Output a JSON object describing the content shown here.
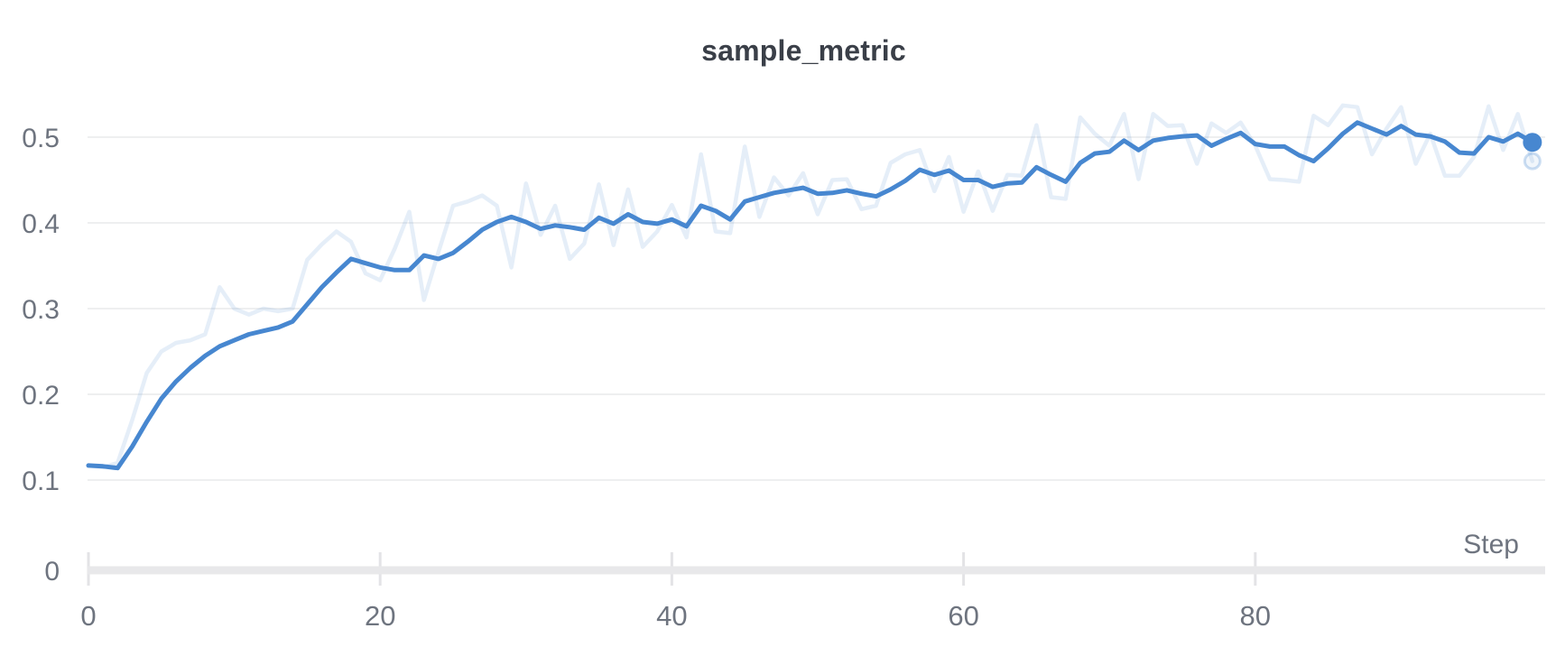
{
  "chart": {
    "title": "sample_metric",
    "x_axis_label": "Step"
  },
  "colors": {
    "line": "#4787d0",
    "raw_line_opacity": 0.14,
    "grid": "#e9eaec",
    "axis_bar": "#e8e8ea",
    "tick_mark": "#e3e3e6",
    "tick_text": "#6e747f",
    "title_text": "#3a3f48",
    "background": "#ffffff"
  },
  "chart_data": {
    "type": "line",
    "title": "sample_metric",
    "xlabel": "Step",
    "ylabel": "",
    "x_start": 0,
    "x_step": 1,
    "xlim": [
      0,
      99
    ],
    "ylim": [
      0,
      0.55
    ],
    "x_tick_values": [
      0,
      20,
      40,
      60,
      80
    ],
    "x_tick_labels": [
      "0",
      "20",
      "40",
      "60",
      "80"
    ],
    "y_tick_values": [
      0,
      0.1,
      0.2,
      0.3,
      0.4,
      0.5
    ],
    "y_tick_labels": [
      "0",
      "0.1",
      "0.2",
      "0.3",
      "0.4",
      "0.5"
    ],
    "grid": true,
    "legend_position": "none",
    "endpoint_markers": true,
    "series": [
      {
        "name": "sample_metric (raw)",
        "role": "raw",
        "values": [
          0.117,
          0.115,
          0.12,
          0.17,
          0.225,
          0.25,
          0.26,
          0.263,
          0.27,
          0.325,
          0.3,
          0.293,
          0.3,
          0.297,
          0.3,
          0.357,
          0.375,
          0.39,
          0.378,
          0.341,
          0.333,
          0.37,
          0.413,
          0.31,
          0.366,
          0.42,
          0.425,
          0.432,
          0.42,
          0.348,
          0.446,
          0.386,
          0.42,
          0.358,
          0.376,
          0.445,
          0.374,
          0.439,
          0.372,
          0.39,
          0.421,
          0.383,
          0.48,
          0.39,
          0.388,
          0.489,
          0.407,
          0.453,
          0.432,
          0.458,
          0.41,
          0.45,
          0.451,
          0.416,
          0.42,
          0.47,
          0.48,
          0.485,
          0.437,
          0.477,
          0.413,
          0.46,
          0.414,
          0.456,
          0.455,
          0.514,
          0.43,
          0.428,
          0.523,
          0.504,
          0.49,
          0.527,
          0.451,
          0.527,
          0.513,
          0.514,
          0.469,
          0.516,
          0.505,
          0.517,
          0.49,
          0.451,
          0.45,
          0.448,
          0.525,
          0.514,
          0.537,
          0.535,
          0.48,
          0.51,
          0.535,
          0.469,
          0.504,
          0.455,
          0.455,
          0.477,
          0.536,
          0.485,
          0.527,
          0.472
        ]
      },
      {
        "name": "sample_metric (smoothed)",
        "role": "smoothed",
        "values": [
          0.117,
          0.116,
          0.114,
          0.139,
          0.168,
          0.195,
          0.215,
          0.231,
          0.245,
          0.256,
          0.263,
          0.27,
          0.274,
          0.278,
          0.285,
          0.305,
          0.325,
          0.342,
          0.358,
          0.353,
          0.348,
          0.345,
          0.345,
          0.362,
          0.358,
          0.365,
          0.378,
          0.392,
          0.401,
          0.407,
          0.401,
          0.393,
          0.397,
          0.395,
          0.392,
          0.406,
          0.399,
          0.41,
          0.401,
          0.399,
          0.404,
          0.396,
          0.42,
          0.414,
          0.404,
          0.425,
          0.43,
          0.435,
          0.438,
          0.441,
          0.434,
          0.435,
          0.438,
          0.434,
          0.431,
          0.439,
          0.449,
          0.462,
          0.456,
          0.461,
          0.45,
          0.45,
          0.442,
          0.446,
          0.447,
          0.465,
          0.456,
          0.448,
          0.47,
          0.481,
          0.483,
          0.496,
          0.485,
          0.496,
          0.499,
          0.501,
          0.502,
          0.49,
          0.498,
          0.505,
          0.492,
          0.489,
          0.489,
          0.479,
          0.472,
          0.487,
          0.504,
          0.517,
          0.51,
          0.503,
          0.513,
          0.503,
          0.501,
          0.495,
          0.482,
          0.481,
          0.5,
          0.495,
          0.504,
          0.494
        ]
      }
    ]
  }
}
